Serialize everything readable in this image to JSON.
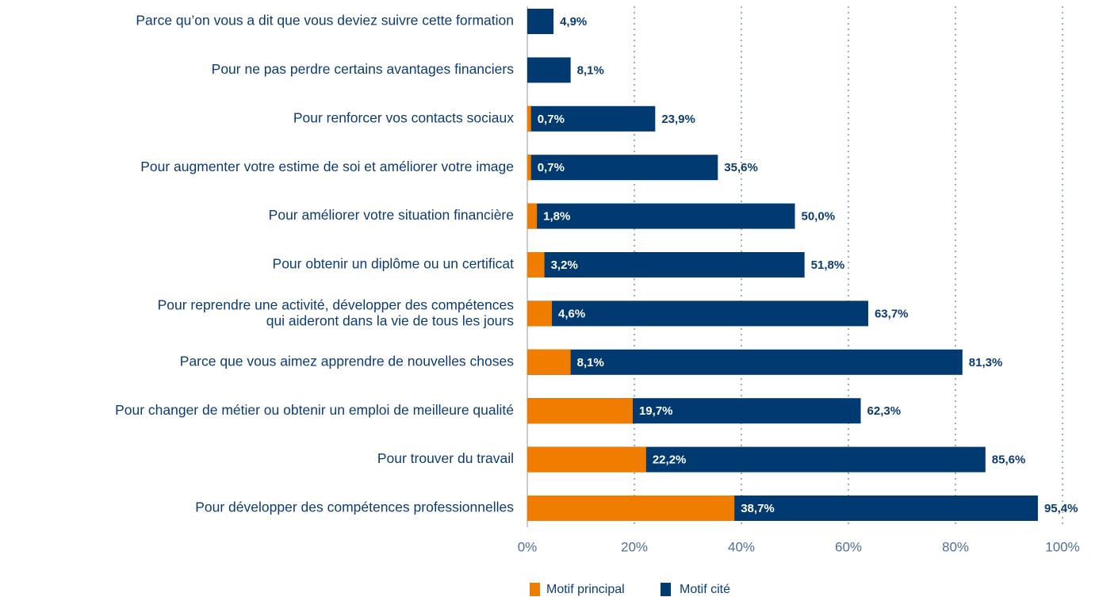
{
  "chart_data": {
    "type": "bar",
    "orientation": "horizontal",
    "categories": [
      "Parce qu’on vous a dit que vous deviez suivre cette formation",
      "Pour ne pas perdre certains avantages financiers",
      "Pour renforcer vos contacts sociaux",
      "Pour augmenter votre estime de soi et améliorer votre image",
      "Pour améliorer votre situation financière",
      "Pour obtenir un diplôme ou un certificat",
      "Pour reprendre une activité, développer des compétences\nqui aideront dans la vie de tous les jours",
      "Parce que vous aimez apprendre de nouvelles choses",
      "Pour changer de métier ou obtenir un emploi de meilleure qualité",
      "Pour trouver du travail",
      "Pour développer des compétences professionnelles"
    ],
    "series": [
      {
        "name": "Motif cité",
        "color": "#003a70",
        "values": [
          4.9,
          8.1,
          23.9,
          35.6,
          50.0,
          51.8,
          63.7,
          81.3,
          62.3,
          85.6,
          95.4
        ],
        "value_labels": [
          "4,9%",
          "8,1%",
          "23,9%",
          "35,6%",
          "50,0%",
          "51,8%",
          "63,7%",
          "81,3%",
          "62,3%",
          "85,6%",
          "95,4%"
        ]
      },
      {
        "name": "Motif principal",
        "color": "#f07c00",
        "values": [
          0,
          0,
          0.7,
          0.7,
          1.8,
          3.2,
          4.6,
          8.1,
          19.7,
          22.2,
          38.7
        ],
        "value_labels": [
          null,
          null,
          "0,7%",
          "0,7%",
          "1,8%",
          "3,2%",
          "4,6%",
          "8,1%",
          "19,7%",
          "22,2%",
          "38,7%"
        ]
      }
    ],
    "xlim": [
      0,
      100
    ],
    "xticks": [
      {
        "value": 0,
        "label": "0%"
      },
      {
        "value": 20,
        "label": "20%"
      },
      {
        "value": 40,
        "label": "40%"
      },
      {
        "value": 60,
        "label": "60%"
      },
      {
        "value": 80,
        "label": "80%"
      },
      {
        "value": 100,
        "label": "100%"
      }
    ],
    "grid": true
  }
}
